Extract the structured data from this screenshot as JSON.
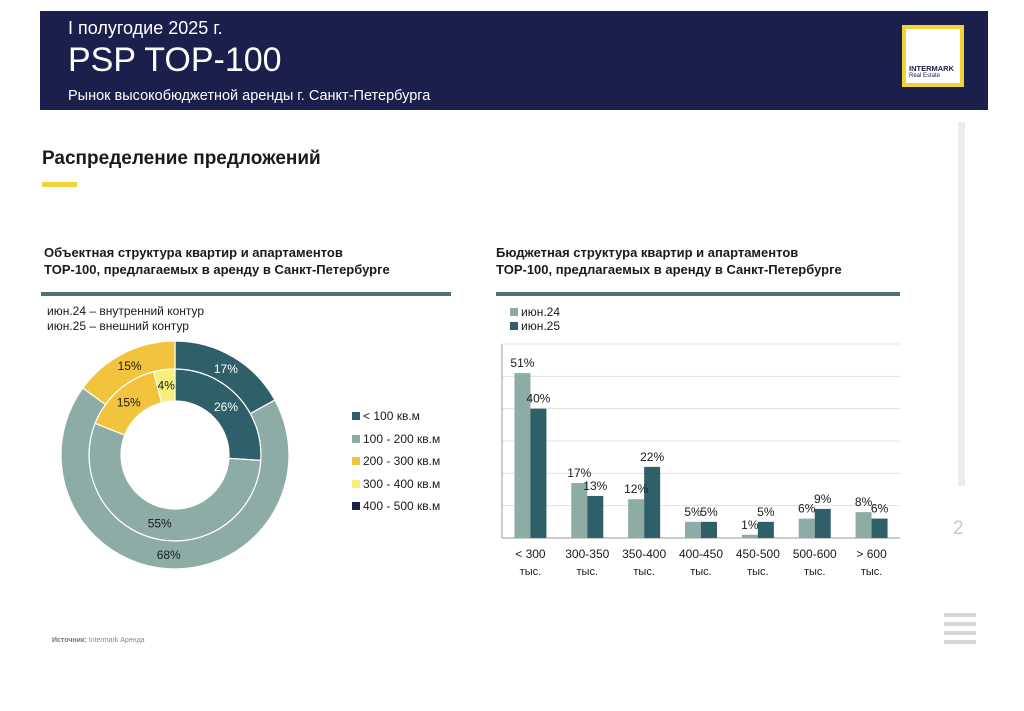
{
  "header": {
    "period": "I полугодие 2025 г.",
    "title": "PSP TOP-100",
    "subtitle": "Рынок высокобюджетной аренды г. Санкт-Петербурга",
    "logo_line1": "INTERMARK",
    "logo_line2": "Real Estate"
  },
  "page_title": "Распределение предложений",
  "donut": {
    "title_line1": "Объектная структура квартир и апартаментов",
    "title_line2": "TOP-100, предлагаемых в аренду в Санкт-Петербурге",
    "note_inner": "июн.24 – внутренний контур",
    "note_outer": "июн.25 – внешний контур",
    "legend": [
      {
        "label": "< 100 кв.м",
        "color": "#2f5f69"
      },
      {
        "label": "100 - 200 кв.м",
        "color": "#8eaca6"
      },
      {
        "label": "200 - 300 кв.м",
        "color": "#f2c43d"
      },
      {
        "label": "300 - 400 кв.м",
        "color": "#f7ef7a"
      },
      {
        "label": "400 - 500 кв.м",
        "color": "#1b1f4b"
      }
    ]
  },
  "bars": {
    "title_line1": "Бюджетная структура квартир и апартаментов",
    "title_line2": "TOP-100, предлагаемых в аренду в Санкт-Петербурге",
    "legend": [
      {
        "label": "июн.24",
        "color": "#8eaca6"
      },
      {
        "label": "июн.25",
        "color": "#2f5f69"
      }
    ]
  },
  "chart_data": [
    {
      "type": "pie",
      "variant": "double-donut",
      "title": "Объектная структура квартир и апартаментов TOP-100, предлагаемых в аренду в Санкт-Петербурге",
      "categories": [
        "< 100 кв.м",
        "100 - 200 кв.м",
        "200 - 300 кв.м",
        "300 - 400 кв.м",
        "400 - 500 кв.м"
      ],
      "series": [
        {
          "name": "июн.24",
          "ring": "inner",
          "values": [
            26,
            55,
            15,
            4,
            0
          ],
          "labels": [
            "26%",
            "55%",
            "15%",
            "4%",
            ""
          ]
        },
        {
          "name": "июн.25",
          "ring": "outer",
          "values": [
            17,
            68,
            15,
            0,
            0
          ],
          "labels": [
            "17%",
            "68%",
            "15%",
            "",
            ""
          ]
        }
      ],
      "colors": [
        "#2f5f69",
        "#8eaca6",
        "#f2c43d",
        "#f7ef7a",
        "#1b1f4b"
      ],
      "legend_position": "right"
    },
    {
      "type": "bar",
      "title": "Бюджетная структура квартир и апартаментов TOP-100, предлагаемых в аренду в Санкт-Петербурге",
      "categories": [
        {
          "line1": "< 300",
          "line2": "тыс."
        },
        {
          "line1": "300-350",
          "line2": "тыс."
        },
        {
          "line1": "350-400",
          "line2": "тыс."
        },
        {
          "line1": "400-450",
          "line2": "тыс."
        },
        {
          "line1": "450-500",
          "line2": "тыс."
        },
        {
          "line1": "500-600",
          "line2": "тыс."
        },
        {
          "line1": "> 600",
          "line2": "тыс."
        }
      ],
      "series": [
        {
          "name": "июн.24",
          "color": "#8eaca6",
          "values": [
            51,
            17,
            12,
            5,
            1,
            6,
            8
          ],
          "labels": [
            "51%",
            "17%",
            "12%",
            "5%",
            "1%",
            "6%",
            "8%"
          ]
        },
        {
          "name": "июн.25",
          "color": "#2f5f69",
          "values": [
            40,
            13,
            22,
            5,
            5,
            9,
            6
          ],
          "labels": [
            "40%",
            "13%",
            "22%",
            "5%",
            "5%",
            "9%",
            "6%"
          ]
        }
      ],
      "ylim": [
        0,
        60
      ],
      "grid": true,
      "legend_position": "top-left"
    }
  ],
  "source": {
    "label": "Источник:",
    "text": "Intermark Аренда"
  },
  "page_number": "2"
}
